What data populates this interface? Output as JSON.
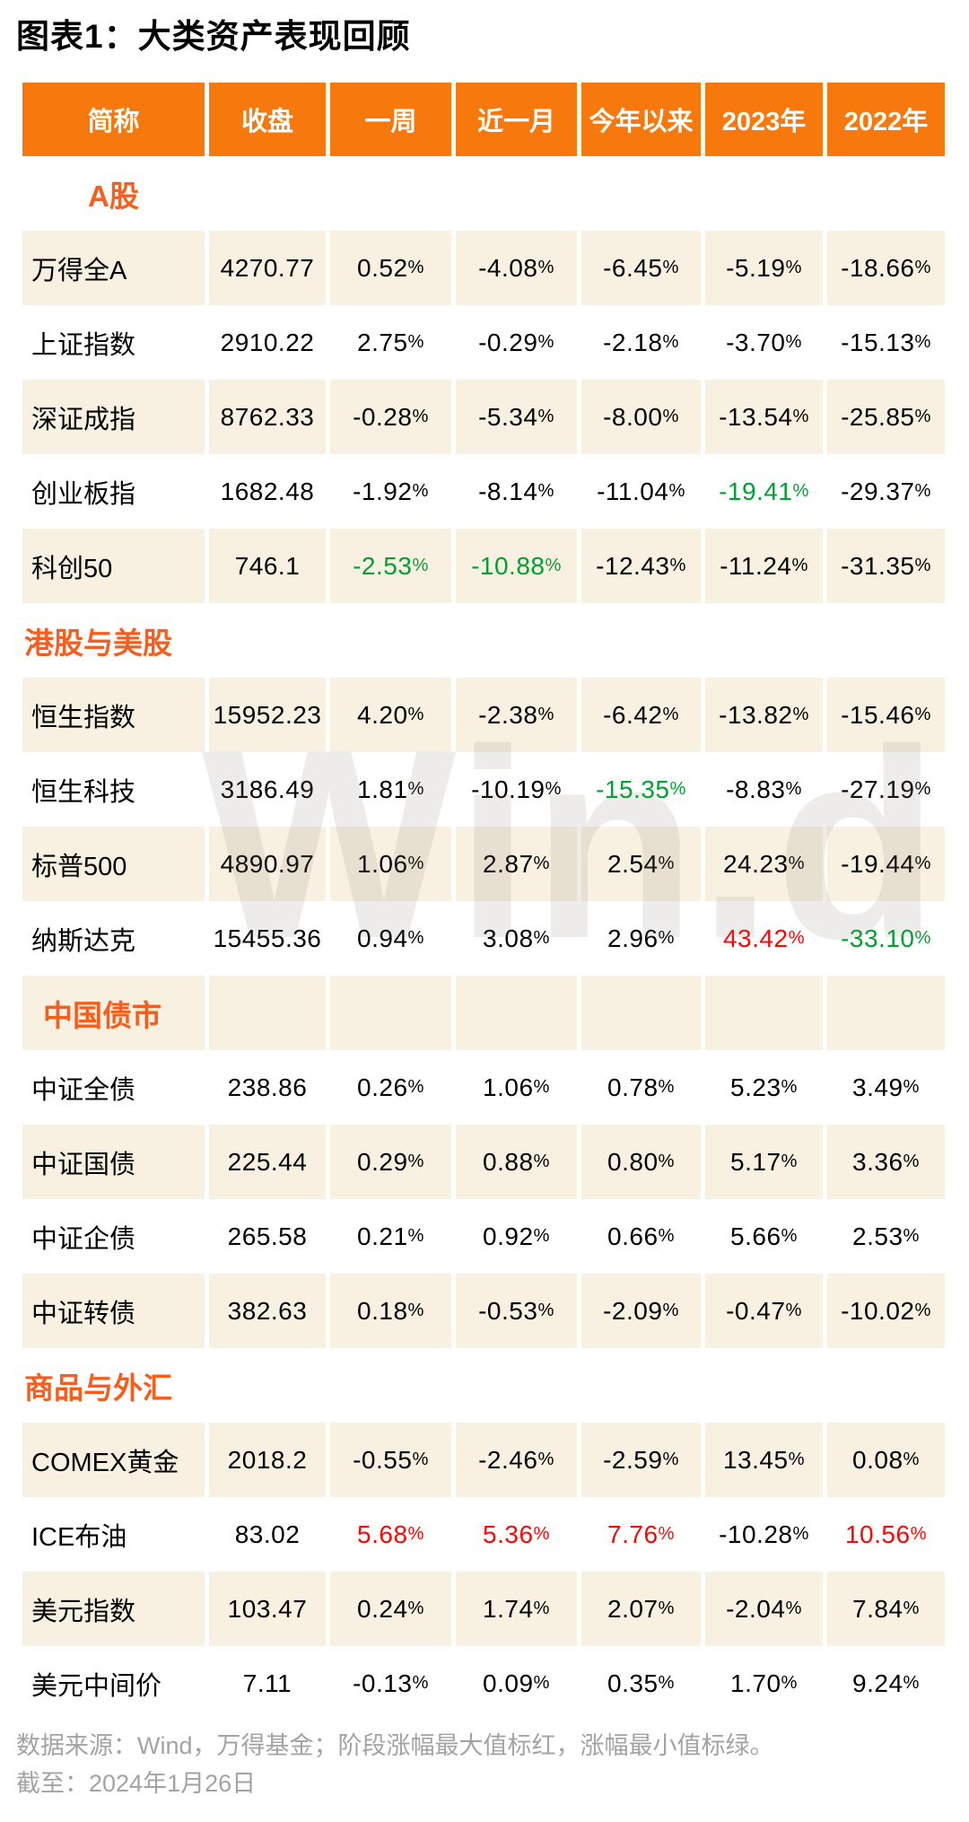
{
  "chart_data": {
    "type": "table",
    "title": "图表1：大类资产表现回顾",
    "watermark": "Win.d",
    "columns": [
      "简称",
      "收盘",
      "一周",
      "近一月",
      "今年以来",
      "2023年",
      "2022年"
    ],
    "sections": [
      {
        "label": "A股",
        "rows": [
          {
            "name": "万得全A",
            "values": [
              "4270.77",
              "0.52%",
              "-4.08%",
              "-6.45%",
              "-5.19%",
              "-18.66%"
            ]
          },
          {
            "name": "上证指数",
            "values": [
              "2910.22",
              "2.75%",
              "-0.29%",
              "-2.18%",
              "-3.70%",
              "-15.13%"
            ]
          },
          {
            "name": "深证成指",
            "values": [
              "8762.33",
              "-0.28%",
              "-5.34%",
              "-8.00%",
              "-13.54%",
              "-25.85%"
            ]
          },
          {
            "name": "创业板指",
            "values": [
              "1682.48",
              "-1.92%",
              "-8.14%",
              "-11.04%",
              "-19.41%",
              "-29.37%"
            ],
            "colors": {
              "4": "green"
            }
          },
          {
            "name": "科创50",
            "values": [
              "746.1",
              "-2.53%",
              "-10.88%",
              "-12.43%",
              "-11.24%",
              "-31.35%"
            ],
            "colors": {
              "1": "green",
              "2": "green"
            }
          }
        ]
      },
      {
        "label": "港股与美股",
        "rows": [
          {
            "name": "恒生指数",
            "values": [
              "15952.23",
              "4.20%",
              "-2.38%",
              "-6.42%",
              "-13.82%",
              "-15.46%"
            ]
          },
          {
            "name": "恒生科技",
            "values": [
              "3186.49",
              "1.81%",
              "-10.19%",
              "-15.35%",
              "-8.83%",
              "-27.19%"
            ],
            "colors": {
              "3": "green"
            }
          },
          {
            "name": "标普500",
            "values": [
              "4890.97",
              "1.06%",
              "2.87%",
              "2.54%",
              "24.23%",
              "-19.44%"
            ]
          },
          {
            "name": "纳斯达克",
            "values": [
              "15455.36",
              "0.94%",
              "3.08%",
              "2.96%",
              "43.42%",
              "-33.10%"
            ],
            "colors": {
              "4": "red",
              "5": "green"
            }
          }
        ]
      },
      {
        "label": "中国债市",
        "rows": [
          {
            "name": "中证全债",
            "values": [
              "238.86",
              "0.26%",
              "1.06%",
              "0.78%",
              "5.23%",
              "3.49%"
            ]
          },
          {
            "name": "中证国债",
            "values": [
              "225.44",
              "0.29%",
              "0.88%",
              "0.80%",
              "5.17%",
              "3.36%"
            ]
          },
          {
            "name": "中证企债",
            "values": [
              "265.58",
              "0.21%",
              "0.92%",
              "0.66%",
              "5.66%",
              "2.53%"
            ]
          },
          {
            "name": "中证转债",
            "values": [
              "382.63",
              "0.18%",
              "-0.53%",
              "-2.09%",
              "-0.47%",
              "-10.02%"
            ]
          }
        ]
      },
      {
        "label": "商品与外汇",
        "rows": [
          {
            "name": "COMEX黄金",
            "values": [
              "2018.2",
              "-0.55%",
              "-2.46%",
              "-2.59%",
              "13.45%",
              "0.08%"
            ]
          },
          {
            "name": "ICE布油",
            "values": [
              "83.02",
              "5.68%",
              "5.36%",
              "7.76%",
              "-10.28%",
              "10.56%"
            ],
            "colors": {
              "1": "red",
              "2": "red",
              "3": "red",
              "5": "red"
            }
          },
          {
            "name": "美元指数",
            "values": [
              "103.47",
              "0.24%",
              "1.74%",
              "2.07%",
              "-2.04%",
              "7.84%"
            ]
          },
          {
            "name": "美元中间价",
            "values": [
              "7.11",
              "-0.13%",
              "0.09%",
              "0.35%",
              "1.70%",
              "9.24%"
            ]
          }
        ]
      }
    ],
    "footer": {
      "source": "数据来源：Wind，万得基金；阶段涨幅最大值标红，涨幅最小值标绿。",
      "asof": "截至：2024年1月26日"
    },
    "palette": {
      "header_bg": "#f7790e",
      "section_text": "#f85d1c",
      "row_beige": "#f8f0e1",
      "red": "#fe0505",
      "green": "#00a133",
      "footer_gray": "#a3a3a3"
    }
  }
}
